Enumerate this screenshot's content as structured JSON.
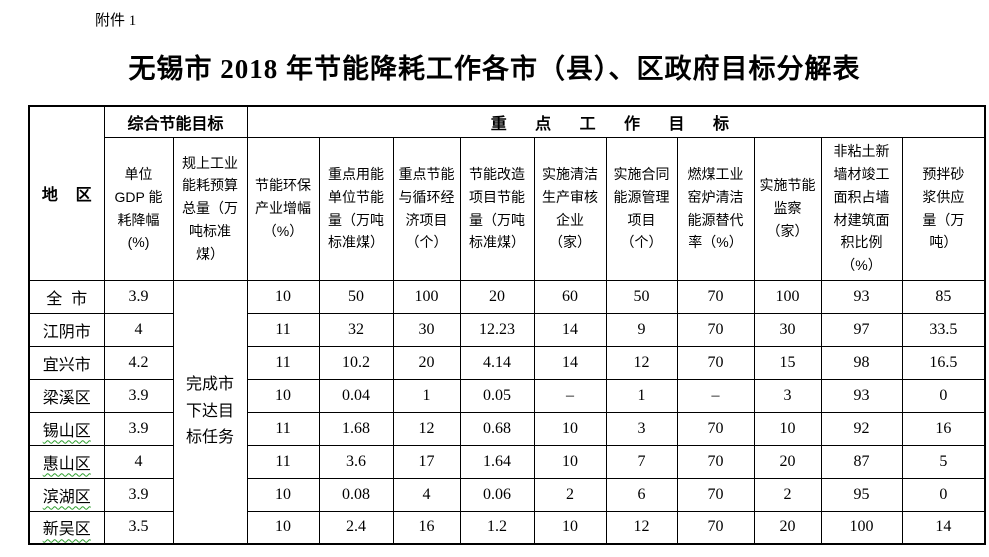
{
  "page": {
    "attachment_label": "附件 1",
    "title": "无锡市 2018 年节能降耗工作各市（县）、区政府目标分解表"
  },
  "table": {
    "header": {
      "region": "地    区",
      "group_comprehensive": "综合节能目标",
      "group_key_work": "重 点 工 作 目 标",
      "columns": [
        "单位\nGDP 能\n耗降幅\n(%)",
        "规上工业\n能耗预算\n总量（万\n吨标准\n煤）",
        "节能环保\n产业增幅\n（%）",
        "重点用能\n单位节能\n量（万吨\n标准煤）",
        "重点节能\n与循环经\n济项目\n（个）",
        "节能改造\n项目节能\n量（万吨\n标准煤）",
        "实施清洁\n生产审核\n企业\n（家）",
        "实施合同\n能源管理\n项目\n（个）",
        "燃煤工业\n窑炉清洁\n能源替代\n率（%）",
        "实施节能\n监察\n（家）",
        "非粘土新\n墙材竣工\n面积占墙\n材建筑面\n积比例\n（%）",
        "预拌砂\n浆供应\n量（万\n吨）"
      ]
    },
    "merged_cell": "完成市\n下达目\n标任务",
    "rows": [
      {
        "region": "全  市",
        "underline": false,
        "values": [
          "3.9",
          "10",
          "50",
          "100",
          "20",
          "60",
          "50",
          "70",
          "100",
          "93",
          "85"
        ]
      },
      {
        "region": "江阴市",
        "underline": false,
        "values": [
          "4",
          "11",
          "32",
          "30",
          "12.23",
          "14",
          "9",
          "70",
          "30",
          "97",
          "33.5"
        ]
      },
      {
        "region": "宜兴市",
        "underline": false,
        "values": [
          "4.2",
          "11",
          "10.2",
          "20",
          "4.14",
          "14",
          "12",
          "70",
          "15",
          "98",
          "16.5"
        ]
      },
      {
        "region": "梁溪区",
        "underline": false,
        "values": [
          "3.9",
          "10",
          "0.04",
          "1",
          "0.05",
          "–",
          "1",
          "–",
          "3",
          "93",
          "0"
        ]
      },
      {
        "region": "锡山区",
        "underline": true,
        "values": [
          "3.9",
          "11",
          "1.68",
          "12",
          "0.68",
          "10",
          "3",
          "70",
          "10",
          "92",
          "16"
        ]
      },
      {
        "region": "惠山区",
        "underline": true,
        "values": [
          "4",
          "11",
          "3.6",
          "17",
          "1.64",
          "10",
          "7",
          "70",
          "20",
          "87",
          "5"
        ]
      },
      {
        "region": "滨湖区",
        "underline": true,
        "values": [
          "3.9",
          "10",
          "0.08",
          "4",
          "0.06",
          "2",
          "6",
          "70",
          "2",
          "95",
          "0"
        ]
      },
      {
        "region": "新吴区",
        "underline": true,
        "values": [
          "3.5",
          "10",
          "2.4",
          "16",
          "1.2",
          "10",
          "12",
          "70",
          "20",
          "100",
          "14"
        ]
      }
    ]
  }
}
